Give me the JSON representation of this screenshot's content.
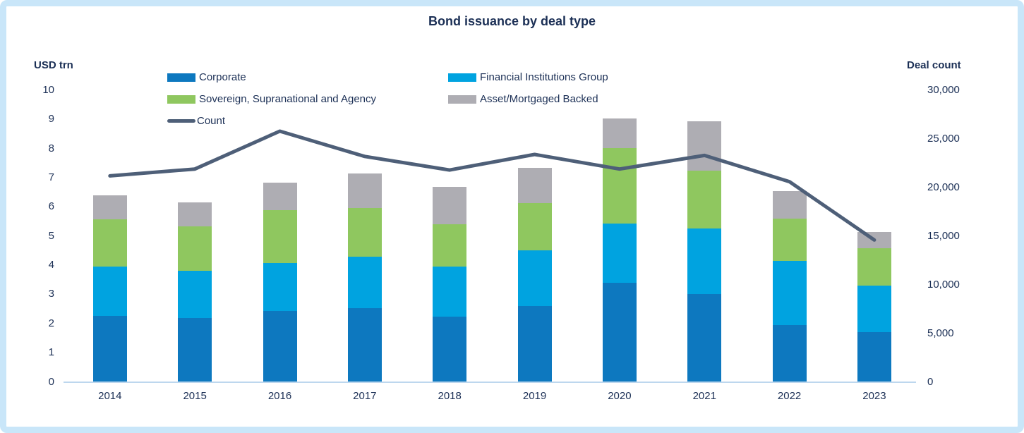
{
  "frame": {
    "border_color": "#c9e6f9",
    "background": "#ffffff"
  },
  "legend": {
    "items": [
      {
        "label": "Corporate",
        "type": "rect",
        "color": "#0d78bf"
      },
      {
        "label": "Financial Institutions Group",
        "type": "rect",
        "color": "#00a3e0"
      },
      {
        "label": "Sovereign, Supranational and Agency",
        "type": "rect",
        "color": "#8fc75f"
      },
      {
        "label": "Asset/Mortgaged Backed",
        "type": "rect",
        "color": "#aeadb3"
      },
      {
        "label": "Count",
        "type": "line",
        "color": "#4e5f78"
      }
    ]
  },
  "chart_data": {
    "type": "bar+line",
    "title": "Bond issuance by deal type",
    "categories": [
      "2014",
      "2015",
      "2016",
      "2017",
      "2018",
      "2019",
      "2020",
      "2021",
      "2022",
      "2023"
    ],
    "series": [
      {
        "name": "Corporate",
        "color": "#0d78bf",
        "values": [
          2.25,
          2.18,
          2.42,
          2.52,
          2.23,
          2.6,
          3.4,
          3.0,
          1.95,
          1.7
        ]
      },
      {
        "name": "Financial Institutions Group",
        "color": "#00a3e0",
        "values": [
          1.7,
          1.64,
          1.65,
          1.78,
          1.72,
          1.9,
          2.03,
          2.25,
          2.2,
          1.6
        ]
      },
      {
        "name": "Sovereign, Supranational and Agency",
        "color": "#8fc75f",
        "values": [
          1.63,
          1.51,
          1.81,
          1.67,
          1.45,
          1.63,
          2.59,
          2.0,
          1.45,
          1.28
        ]
      },
      {
        "name": "Asset/Mortgaged Backed",
        "color": "#aeadb3",
        "values": [
          0.82,
          0.82,
          0.95,
          1.18,
          1.28,
          1.2,
          1.01,
          1.68,
          0.95,
          0.55
        ]
      }
    ],
    "line_series": {
      "name": "Count",
      "color": "#4e5f78",
      "axis": "right",
      "values": [
        21200,
        21900,
        25800,
        23200,
        21800,
        23400,
        21900,
        23300,
        20600,
        14600
      ]
    },
    "left_axis": {
      "label": "USD trn",
      "min": 0,
      "max": 10,
      "step": 1,
      "ticks": [
        "0",
        "1",
        "2",
        "3",
        "4",
        "5",
        "6",
        "7",
        "8",
        "9",
        "10"
      ]
    },
    "right_axis": {
      "label": "Deal count",
      "min": 0,
      "max": 30000,
      "step": 5000,
      "ticks": [
        "0",
        "5,000",
        "10,000",
        "15,000",
        "20,000",
        "25,000",
        "30,000"
      ]
    },
    "layout_hints": {
      "grid": "off",
      "legend_position": "top",
      "bar_mode": "stacked",
      "baseline_color": "#bdd7ee"
    }
  }
}
